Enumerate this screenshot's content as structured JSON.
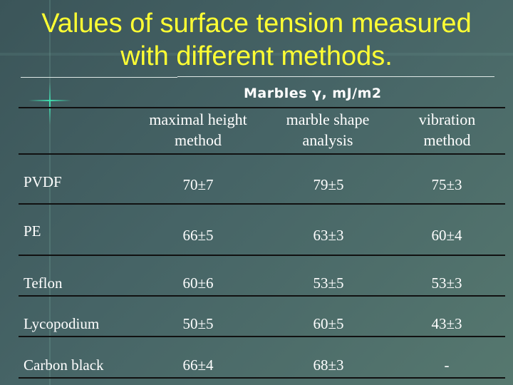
{
  "title": "Values of surface tension measured with different methods.",
  "title_lines": [
    "Values of surface tension measured",
    "with different methods."
  ],
  "subtitle": "Marbles  γ, mJ/m2",
  "columns": [
    {
      "line1": "maximal height",
      "line2": "method"
    },
    {
      "line1": "marble shape",
      "line2": "analysis"
    },
    {
      "line1": "vibration",
      "line2": "method"
    }
  ],
  "rows": [
    {
      "label": "PVDF",
      "values": [
        "70±7",
        "79±5",
        "75±3"
      ]
    },
    {
      "label": "PE",
      "values": [
        "66±5",
        "63±3",
        "60±4"
      ]
    },
    {
      "label": "Teflon",
      "values": [
        "60±6",
        "53±5",
        "53±3"
      ]
    },
    {
      "label": "Lycopodium",
      "values": [
        "50±5",
        "60±5",
        "43±3"
      ]
    },
    {
      "label": "Carbon black",
      "values": [
        "66±4",
        "68±3",
        "-"
      ]
    }
  ],
  "colors": {
    "title": "#ffff33",
    "background": "#466466"
  }
}
